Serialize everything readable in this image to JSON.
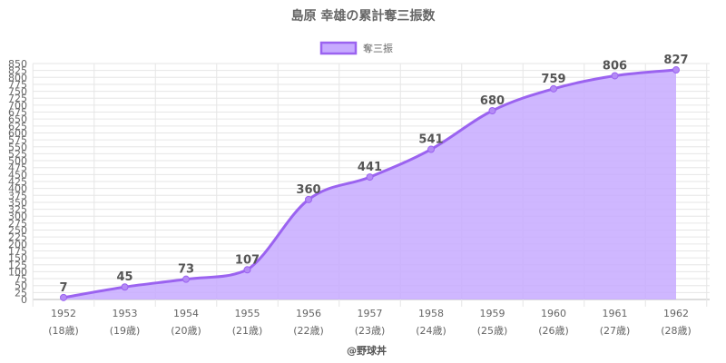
{
  "chart_data": {
    "type": "area",
    "title": "島原 幸雄の累計奪三振数",
    "legend": {
      "label": "奪三振",
      "position": "top"
    },
    "credit": "@野球丼",
    "categories": [
      "1952",
      "1953",
      "1954",
      "1955",
      "1956",
      "1957",
      "1958",
      "1959",
      "1960",
      "1961",
      "1962"
    ],
    "age_labels": [
      "(18歳)",
      "(19歳)",
      "(20歳)",
      "(21歳)",
      "(22歳)",
      "(23歳)",
      "(24歳)",
      "(25歳)",
      "(26歳)",
      "(27歳)",
      "(28歳)"
    ],
    "series": [
      {
        "name": "奪三振",
        "values": [
          7,
          45,
          73,
          107,
          360,
          441,
          541,
          680,
          759,
          806,
          827
        ]
      }
    ],
    "ylim": [
      0,
      850
    ],
    "ytick_step": 25,
    "grid": true,
    "colors": {
      "line": "#9b63f0",
      "fill": "#c7aaff",
      "point": "#b48bf5"
    }
  }
}
